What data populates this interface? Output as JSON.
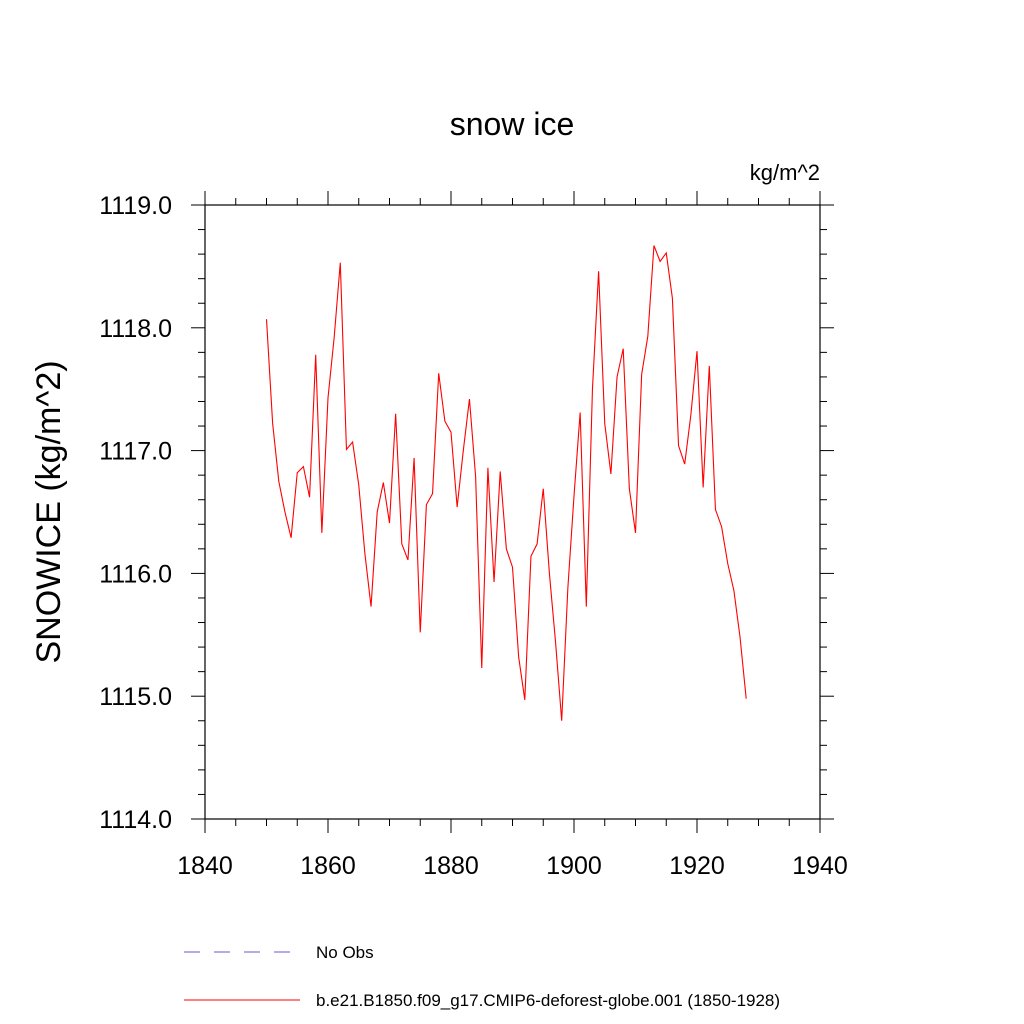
{
  "chart_data": {
    "type": "line",
    "title": "snow ice",
    "units": "kg/m^2",
    "ylabel": "SNOWICE  (kg/m^2)",
    "xlabel": "",
    "xlim": [
      1840,
      1940
    ],
    "ylim": [
      1114.0,
      1119.0
    ],
    "xticks": [
      1840,
      1860,
      1880,
      1900,
      1920,
      1940
    ],
    "xtick_labels": [
      "1840",
      "1860",
      "1880",
      "1900",
      "1920",
      "1940"
    ],
    "yticks": [
      1114.0,
      1115.0,
      1116.0,
      1117.0,
      1118.0,
      1119.0
    ],
    "ytick_labels": [
      "1114.0",
      "1115.0",
      "1116.0",
      "1117.0",
      "1118.0",
      "1119.0"
    ],
    "grid": false,
    "legend_position": "bottom",
    "series": [
      {
        "name": "No Obs",
        "color": "#6a5acd",
        "dash": true,
        "x": [],
        "values": []
      },
      {
        "name": "b.e21.B1850.f09_g17.CMIP6-deforest-globe.001 (1850-1928)",
        "color": "#ff0000",
        "dash": false,
        "x_start": 1850,
        "values": [
          1118.07,
          1117.22,
          1116.75,
          1116.5,
          1116.29,
          1116.82,
          1116.87,
          1116.62,
          1117.78,
          1116.33,
          1117.43,
          1117.92,
          1118.53,
          1117.01,
          1117.07,
          1116.72,
          1116.16,
          1115.73,
          1116.5,
          1116.74,
          1116.41,
          1117.3,
          1116.24,
          1116.11,
          1116.94,
          1115.52,
          1116.56,
          1116.65,
          1117.63,
          1117.24,
          1117.15,
          1116.54,
          1117.0,
          1117.42,
          1116.79,
          1115.23,
          1116.86,
          1115.93,
          1116.83,
          1116.2,
          1116.05,
          1115.32,
          1114.97,
          1116.14,
          1116.24,
          1116.69,
          1116.0,
          1115.44,
          1114.8,
          1115.88,
          1116.63,
          1117.31,
          1115.73,
          1117.5,
          1118.46,
          1117.22,
          1116.81,
          1117.6,
          1117.83,
          1116.69,
          1116.33,
          1117.62,
          1117.93,
          1118.67,
          1118.54,
          1118.61,
          1118.24,
          1117.04,
          1116.89,
          1117.29,
          1117.81,
          1116.7,
          1117.69,
          1116.52,
          1116.38,
          1116.08,
          1115.86,
          1115.48,
          1114.98
        ]
      }
    ]
  }
}
